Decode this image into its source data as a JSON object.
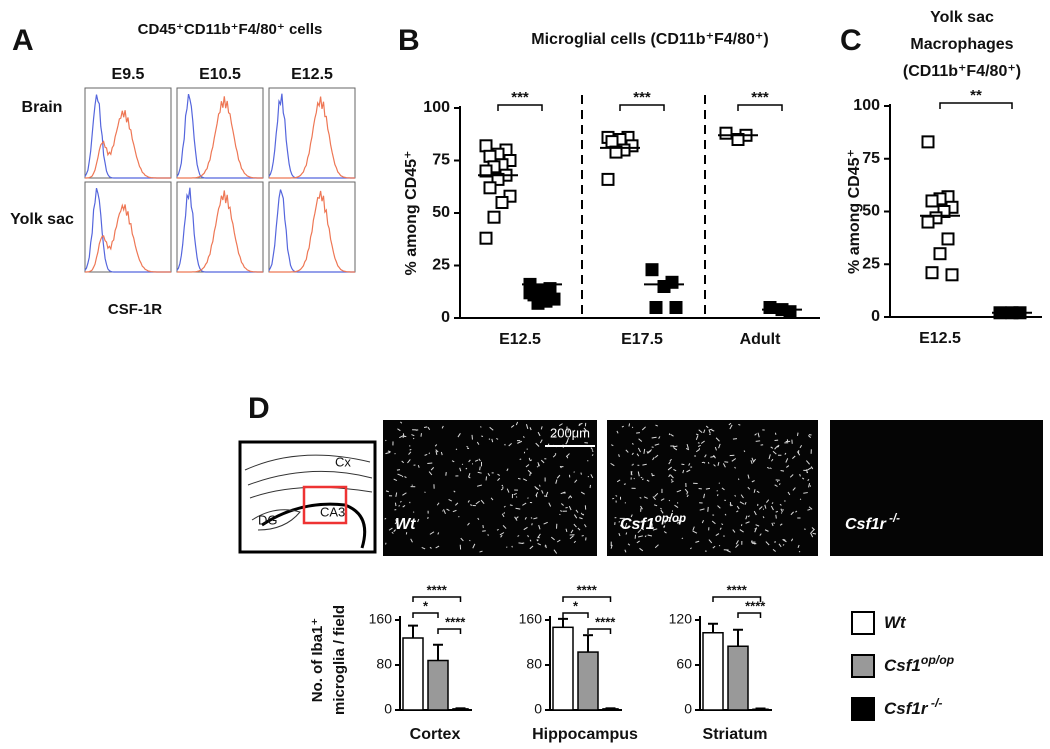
{
  "panel_a": {
    "label": "A",
    "title": "CD45⁺CD11b⁺F4/80⁺ cells",
    "columns": [
      "E9.5",
      "E10.5",
      "E12.5"
    ],
    "rows": [
      "Brain",
      "Yolk sac"
    ],
    "xlabel": "CSF-1R"
  },
  "panel_b": {
    "label": "B",
    "title": "Microglial cells (CD11b⁺F4/80⁺)",
    "ylabel": "% among CD45⁺",
    "ylim": [
      0,
      100
    ],
    "yticks": [
      0,
      25,
      50,
      75,
      100
    ],
    "categories": [
      "E12.5",
      "E17.5",
      "Adult"
    ],
    "open": [
      [
        82,
        80,
        78,
        77,
        75,
        73,
        72,
        70,
        68,
        66,
        62,
        58,
        55,
        48,
        38
      ],
      [
        86,
        86,
        85,
        84,
        82,
        80,
        79,
        66
      ],
      [
        88,
        87,
        85
      ]
    ],
    "filled": [
      [
        16,
        14,
        13,
        11,
        9,
        8,
        7,
        12
      ],
      [
        23,
        17,
        15,
        5,
        5
      ],
      [
        5,
        3,
        4
      ]
    ],
    "open_mean": [
      68,
      81,
      87
    ],
    "filled_mean": [
      16,
      16,
      4
    ],
    "significance": [
      "***",
      "***",
      "***"
    ]
  },
  "panel_c": {
    "label": "C",
    "title": [
      "Yolk sac",
      "Macrophages",
      "(CD11b⁺F4/80⁺)"
    ],
    "ylabel": "% among CD45⁺",
    "ylim": [
      0,
      100
    ],
    "yticks": [
      0,
      25,
      50,
      75,
      100
    ],
    "categories": [
      "E12.5"
    ],
    "open": [
      [
        83,
        57,
        56,
        55,
        52,
        50,
        47,
        45,
        37,
        30,
        21,
        20
      ]
    ],
    "filled": [
      [
        2,
        2,
        2
      ]
    ],
    "open_mean": [
      48
    ],
    "filled_mean": [
      2
    ],
    "significance": [
      "**"
    ]
  },
  "panel_d": {
    "label": "D",
    "schematic": [
      "Cx",
      "DG",
      "CA3"
    ],
    "scale_bar": "200μm",
    "genotypes": [
      {
        "name": "Wt",
        "color": "#ffffff"
      },
      {
        "name": "Csf1",
        "sup": "op/op",
        "color": "#999999"
      },
      {
        "name": "Csf1r",
        "sup": " -/-",
        "color": "#000000"
      }
    ],
    "ylabel": [
      "No. of Iba1⁺",
      "microglia / field"
    ],
    "charts": [
      {
        "category": "Cortex",
        "ylim": [
          0,
          160
        ],
        "yticks": [
          0,
          80,
          160
        ],
        "values": [
          128,
          88,
          2
        ],
        "errors": [
          22,
          28,
          1
        ],
        "significance": [
          "****",
          "*",
          "****"
        ]
      },
      {
        "category": "Hippocampus",
        "ylim": [
          0,
          160
        ],
        "yticks": [
          0,
          80,
          160
        ],
        "values": [
          147,
          103,
          2
        ],
        "errors": [
          15,
          30,
          1
        ],
        "significance": [
          "****",
          "*",
          "****"
        ]
      },
      {
        "category": "Striatum",
        "ylim": [
          0,
          120
        ],
        "yticks": [
          0,
          60,
          120
        ],
        "values": [
          103,
          85,
          1
        ],
        "errors": [
          12,
          22,
          1
        ],
        "significance": [
          "****",
          "****"
        ]
      }
    ]
  }
}
